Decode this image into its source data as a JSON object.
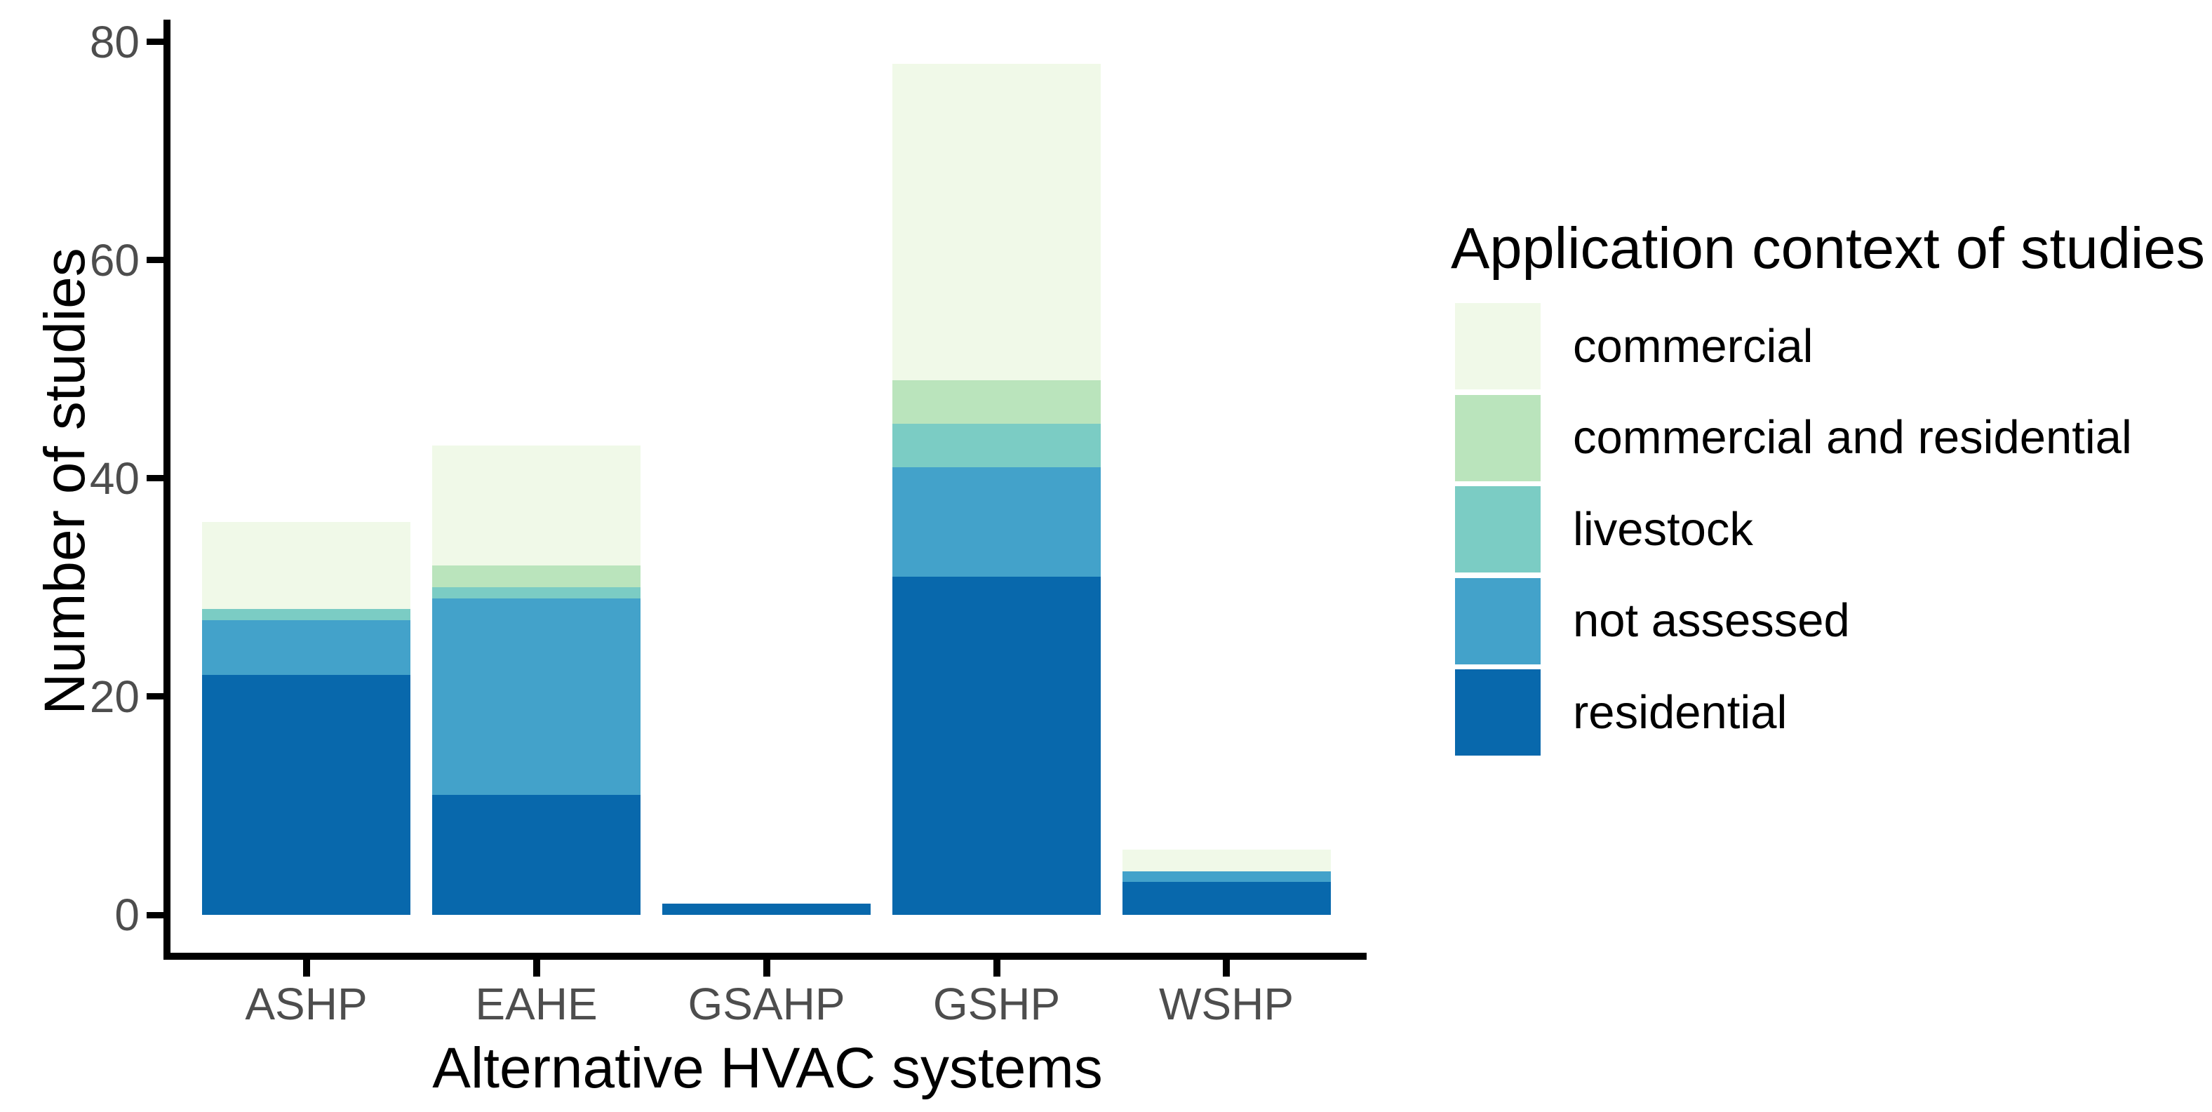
{
  "chart_data": {
    "type": "bar",
    "stacked": true,
    "orientation": "vertical",
    "categories": [
      "ASHP",
      "EAHE",
      "GSAHP",
      "GSHP",
      "WSHP"
    ],
    "series": [
      {
        "name": "commercial",
        "color": "#F0F9E8",
        "values": [
          8,
          11,
          0,
          29,
          2
        ]
      },
      {
        "name": "commercial and residential",
        "color": "#BAE4BC",
        "values": [
          0,
          2,
          0,
          4,
          0
        ]
      },
      {
        "name": "livestock",
        "color": "#7BCCC4",
        "values": [
          1,
          1,
          0,
          4,
          0
        ]
      },
      {
        "name": "not assessed",
        "color": "#43A2CA",
        "values": [
          5,
          18,
          0,
          10,
          1
        ]
      },
      {
        "name": "residential",
        "color": "#0868AC",
        "values": [
          22,
          11,
          1,
          31,
          3
        ]
      }
    ],
    "stack_order_bottom_to_top": [
      "residential",
      "not assessed",
      "livestock",
      "commercial and residential",
      "commercial"
    ],
    "totals": [
      36,
      43,
      1,
      78,
      6
    ],
    "title": "",
    "xlabel": "Alternative HVAC systems",
    "ylabel": "Number of studies",
    "ylim": [
      0,
      80
    ],
    "yticks": [
      0,
      20,
      40,
      60,
      80
    ],
    "grid": false,
    "legend_position": "right"
  },
  "y_axis": {
    "title": "Number of studies",
    "tick_labels": [
      "0",
      "20",
      "40",
      "60",
      "80"
    ]
  },
  "x_axis": {
    "title": "Alternative HVAC systems",
    "tick_labels": [
      "ASHP",
      "EAHE",
      "GSAHP",
      "GSHP",
      "WSHP"
    ]
  },
  "legend": {
    "title": "Application context of studies",
    "items": [
      {
        "label": "commercial",
        "color": "#F0F9E8"
      },
      {
        "label": "commercial and residential",
        "color": "#BAE4BC"
      },
      {
        "label": "livestock",
        "color": "#7BCCC4"
      },
      {
        "label": "not assessed",
        "color": "#43A2CA"
      },
      {
        "label": "residential",
        "color": "#0868AC"
      }
    ]
  },
  "style_colors": {
    "axis_line": "#000000",
    "tick_text": "#4D4D4D",
    "title_text": "#000000",
    "background": "#FFFFFF"
  }
}
